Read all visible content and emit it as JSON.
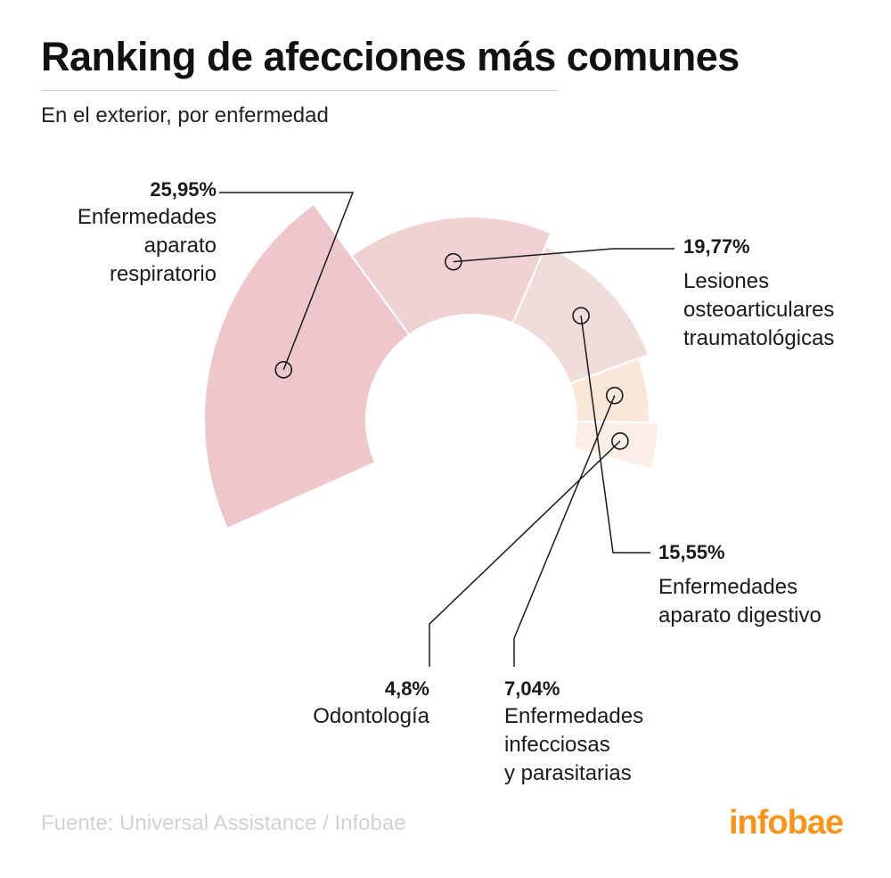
{
  "chart_data": {
    "type": "pie",
    "title": "Ranking de afecciones más comunes",
    "subtitle": "En el exterior, por enfermedad",
    "slices": [
      {
        "percent_label": "25,95%",
        "value": 25.95,
        "name": "Enfermedades\naparato\nrespiratorio",
        "color": "#eec7cc"
      },
      {
        "percent_label": "19,77%",
        "value": 19.77,
        "name": "Lesiones\nosteoarticulares\ntraumatológicas",
        "color": "#f0d2d4"
      },
      {
        "percent_label": "15,55%",
        "value": 15.55,
        "name": "Enfermedades\naparato digestivo",
        "color": "#f1dcdc"
      },
      {
        "percent_label": "7,04%",
        "value": 7.04,
        "name": "Enfermedades\ninfecciosas\ny parasitarias",
        "color": "#f9e8d9"
      },
      {
        "percent_label": "4,8%",
        "value": 4.8,
        "name": "Odontología",
        "color": "#fbeee6"
      }
    ]
  },
  "footer": {
    "source": "Fuente: Universal Assistance  / Infobae",
    "brand": "infobae",
    "brand_color": "#f7941d"
  }
}
